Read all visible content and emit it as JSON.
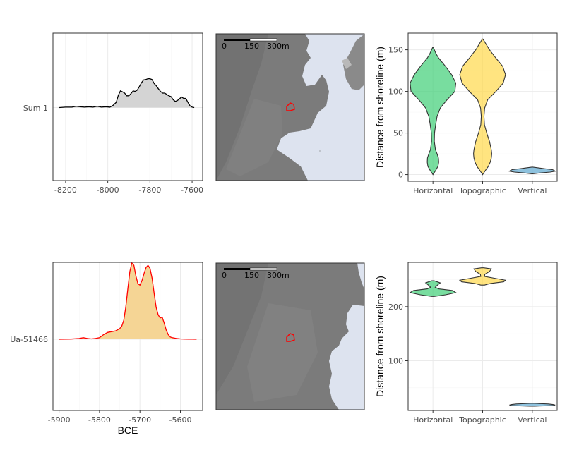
{
  "chart_data": [
    {
      "type": "area",
      "panel": "density-top",
      "row_label": "Sum 1",
      "x_ticks": [
        -8200,
        -8000,
        -7800,
        -7600
      ],
      "xlim": [
        -8260,
        -7550
      ],
      "line_color": "#000000",
      "fill_color": "#d4d4d4",
      "x": [
        -8230,
        -8200,
        -8170,
        -8150,
        -8130,
        -8110,
        -8090,
        -8070,
        -8050,
        -8030,
        -8010,
        -7990,
        -7975,
        -7960,
        -7950,
        -7940,
        -7930,
        -7920,
        -7910,
        -7900,
        -7890,
        -7880,
        -7870,
        -7860,
        -7850,
        -7840,
        -7830,
        -7820,
        -7810,
        -7800,
        -7790,
        -7780,
        -7770,
        -7760,
        -7750,
        -7740,
        -7730,
        -7720,
        -7710,
        -7700,
        -7690,
        -7680,
        -7670,
        -7660,
        -7650,
        -7640,
        -7630,
        -7620,
        -7610,
        -7600,
        -7590
      ],
      "y": [
        0,
        0.01,
        0.01,
        0.03,
        0.02,
        0.01,
        0.02,
        0.01,
        0.03,
        0.01,
        0.02,
        0.01,
        0.05,
        0.12,
        0.28,
        0.38,
        0.36,
        0.33,
        0.27,
        0.27,
        0.32,
        0.38,
        0.37,
        0.4,
        0.48,
        0.57,
        0.63,
        0.64,
        0.66,
        0.66,
        0.64,
        0.55,
        0.5,
        0.43,
        0.37,
        0.33,
        0.33,
        0.3,
        0.27,
        0.25,
        0.18,
        0.14,
        0.16,
        0.2,
        0.24,
        0.21,
        0.21,
        0.12,
        0.04,
        0.01,
        0
      ]
    },
    {
      "type": "image",
      "panel": "map-top",
      "scale_bar_labels": [
        "0",
        "150",
        "300m"
      ],
      "site_outline_color": "#ff0000",
      "terrain_color": "#7a7a7a",
      "sea_color": "#dde3ef"
    },
    {
      "type": "violin",
      "panel": "violin-top",
      "ylabel": "Distance from shoreline (m)",
      "ylim": [
        -8,
        170
      ],
      "y_ticks": [
        0,
        50,
        100,
        150
      ],
      "categories": [
        "Horizontal",
        "Topographic",
        "Vertical"
      ],
      "series": [
        {
          "category": "Horizontal",
          "color": "#3ecf76",
          "y": [
            0,
            5,
            10,
            15,
            20,
            25,
            30,
            40,
            50,
            60,
            70,
            80,
            90,
            100,
            110,
            120,
            130,
            140,
            145,
            150,
            153
          ],
          "w": [
            0.0,
            0.12,
            0.22,
            0.25,
            0.24,
            0.18,
            0.11,
            0.06,
            0.07,
            0.12,
            0.18,
            0.32,
            0.62,
            0.96,
            1.0,
            0.82,
            0.55,
            0.25,
            0.14,
            0.06,
            0.01
          ]
        },
        {
          "category": "Topographic",
          "color": "#ffd84a",
          "y": [
            0,
            5,
            10,
            15,
            20,
            25,
            30,
            40,
            50,
            60,
            70,
            80,
            90,
            100,
            110,
            120,
            130,
            140,
            150,
            160,
            163
          ],
          "w": [
            0.0,
            0.12,
            0.25,
            0.33,
            0.38,
            0.4,
            0.38,
            0.3,
            0.18,
            0.08,
            0.06,
            0.09,
            0.22,
            0.58,
            0.9,
            1.0,
            0.88,
            0.58,
            0.3,
            0.08,
            0.01
          ]
        },
        {
          "category": "Vertical",
          "color": "#5ea8d0",
          "y": [
            1,
            2,
            3,
            4,
            5,
            6,
            7,
            8,
            9
          ],
          "w": [
            0.02,
            0.35,
            0.78,
            1.0,
            0.96,
            0.88,
            0.56,
            0.28,
            0.02
          ]
        }
      ]
    },
    {
      "type": "area",
      "panel": "density-bottom",
      "row_label": "Ua-51466",
      "x_ticks": [
        -5900,
        -5800,
        -5700,
        -5600
      ],
      "xlim": [
        -5915,
        -5545
      ],
      "xlabel": "BCE",
      "line_color": "#ff0000",
      "fill_color": "#f5d595",
      "x": [
        -5900,
        -5870,
        -5850,
        -5840,
        -5830,
        -5820,
        -5810,
        -5800,
        -5790,
        -5780,
        -5770,
        -5760,
        -5750,
        -5745,
        -5740,
        -5735,
        -5730,
        -5725,
        -5720,
        -5715,
        -5710,
        -5705,
        -5700,
        -5695,
        -5690,
        -5685,
        -5680,
        -5675,
        -5670,
        -5665,
        -5660,
        -5655,
        -5650,
        -5645,
        -5640,
        -5635,
        -5630,
        -5625,
        -5620,
        -5610,
        -5600,
        -5590,
        -5580,
        -5570,
        -5560
      ],
      "y": [
        0,
        0.003,
        0.01,
        0.02,
        0.01,
        0.005,
        0.01,
        0.02,
        0.06,
        0.09,
        0.1,
        0.11,
        0.14,
        0.17,
        0.25,
        0.42,
        0.66,
        0.89,
        1.0,
        0.97,
        0.83,
        0.73,
        0.71,
        0.77,
        0.86,
        0.94,
        0.97,
        0.93,
        0.8,
        0.61,
        0.42,
        0.32,
        0.28,
        0.29,
        0.21,
        0.12,
        0.06,
        0.03,
        0.02,
        0.01,
        0.005,
        0.003,
        0.002,
        0.001,
        0
      ]
    },
    {
      "type": "image",
      "panel": "map-bottom",
      "scale_bar_labels": [
        "0",
        "150",
        "300m"
      ],
      "site_outline_color": "#ff0000",
      "terrain_color": "#7a7a7a",
      "sea_color": "#dde3ef"
    },
    {
      "type": "violin",
      "panel": "violin-bottom",
      "ylabel": "Distance from shoreline (m)",
      "ylim": [
        8,
        282
      ],
      "y_ticks": [
        100,
        200
      ],
      "categories": [
        "Horizontal",
        "Topographic",
        "Vertical"
      ],
      "series": [
        {
          "category": "Horizontal",
          "color": "#3ecf76",
          "y": [
            219,
            222,
            226,
            230,
            233,
            236,
            240,
            244,
            248
          ],
          "w": [
            0.05,
            0.55,
            1.0,
            0.85,
            0.25,
            0.1,
            0.2,
            0.32,
            0.05
          ]
        },
        {
          "category": "Topographic",
          "color": "#ffd84a",
          "y": [
            240,
            243,
            246,
            249,
            252,
            256,
            260,
            265,
            270,
            272
          ],
          "w": [
            0.08,
            0.35,
            0.92,
            1.0,
            0.6,
            0.08,
            0.1,
            0.3,
            0.38,
            0.05
          ]
        },
        {
          "category": "Vertical",
          "color": "#5ea8d0",
          "y": [
            16,
            17,
            18,
            19,
            20,
            21
          ],
          "w": [
            0.1,
            0.9,
            1.0,
            0.9,
            0.7,
            0.1
          ]
        }
      ]
    }
  ]
}
